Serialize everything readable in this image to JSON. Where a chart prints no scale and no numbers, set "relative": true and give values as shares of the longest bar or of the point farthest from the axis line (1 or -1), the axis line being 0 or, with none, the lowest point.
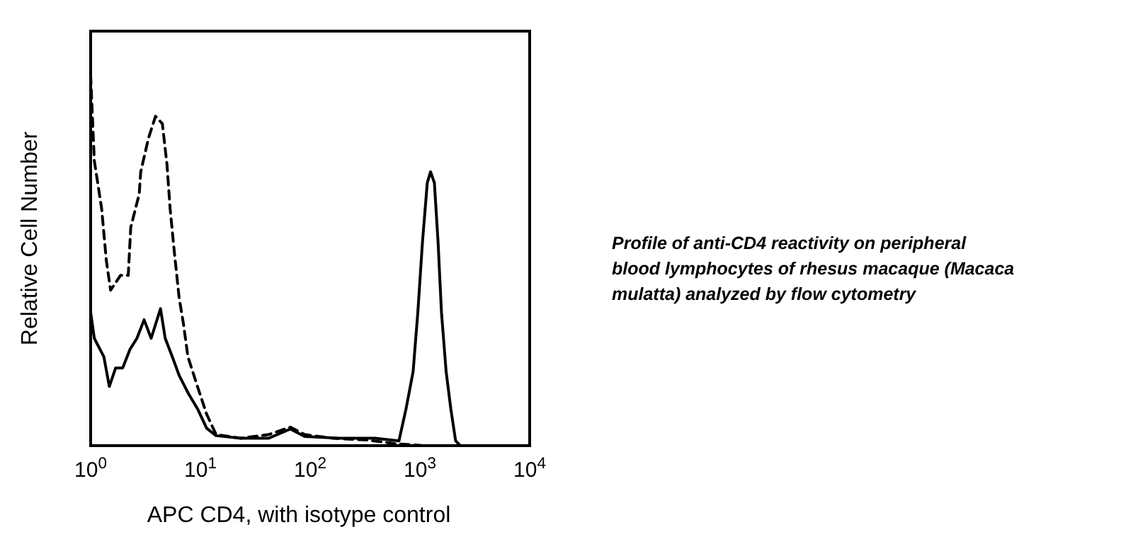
{
  "chart_data": {
    "type": "line",
    "xlabel": "APC CD4, with isotype control",
    "ylabel": "Relative Cell Number",
    "log": "x",
    "relative": true,
    "xlim": [
      1,
      10000
    ],
    "xticks": [
      {
        "value": 1,
        "label": "10$^{0}$"
      },
      {
        "value": 10,
        "label": "10$^{1}$"
      },
      {
        "value": 100,
        "label": "10$^{2}$"
      },
      {
        "value": 1000,
        "label": "10$^{3}$"
      },
      {
        "value": 10000,
        "label": "10$^{4}$"
      }
    ],
    "annotations": [
      "Profile of anti-CD4 reactivity on peripheral blood lymphocytes of rhesus macaque (Macaca mulatta) analyzed by flow cytometry"
    ],
    "series": [
      {
        "color": "#000000",
        "line_style": "dashed",
        "x": [
          1,
          1.08,
          1.26,
          1.39,
          1.52,
          1.87,
          2.2,
          2.32,
          2.77,
          2.86,
          3.36,
          3.9,
          4.5,
          4.96,
          5.3,
          5.8,
          6.4,
          7.0,
          7.7,
          9.4,
          11.4,
          13.9,
          23.3,
          42,
          66,
          89,
          160,
          338,
          610,
          1100,
          10000
        ],
        "values": [
          1.0,
          0.77,
          0.64,
          0.5,
          0.42,
          0.46,
          0.46,
          0.59,
          0.68,
          0.74,
          0.83,
          0.89,
          0.87,
          0.76,
          0.64,
          0.52,
          0.4,
          0.33,
          0.24,
          0.16,
          0.085,
          0.03,
          0.02,
          0.03,
          0.05,
          0.03,
          0.02,
          0.015,
          0.005,
          0,
          0
        ]
      },
      {
        "color": "#000000",
        "line_style": "solid",
        "x": [
          1,
          1.08,
          1.32,
          1.48,
          1.69,
          1.96,
          2.28,
          2.64,
          3.07,
          3.56,
          4.33,
          4.78,
          5.55,
          6.4,
          7.8,
          9.4,
          11.4,
          13.9,
          23.3,
          42,
          66,
          89,
          186,
          390,
          644,
          748,
          867,
          957,
          1055,
          1167,
          1250,
          1355,
          1463,
          1572,
          1733,
          1911,
          2115,
          2333,
          10000
        ],
        "values": [
          0.36,
          0.29,
          0.24,
          0.16,
          0.21,
          0.21,
          0.26,
          0.29,
          0.34,
          0.29,
          0.37,
          0.29,
          0.24,
          0.19,
          0.14,
          0.1,
          0.047,
          0.027,
          0.02,
          0.02,
          0.045,
          0.025,
          0.02,
          0.02,
          0.013,
          0.1,
          0.2,
          0.36,
          0.55,
          0.71,
          0.74,
          0.71,
          0.55,
          0.36,
          0.2,
          0.1,
          0.013,
          0,
          0
        ]
      }
    ]
  }
}
